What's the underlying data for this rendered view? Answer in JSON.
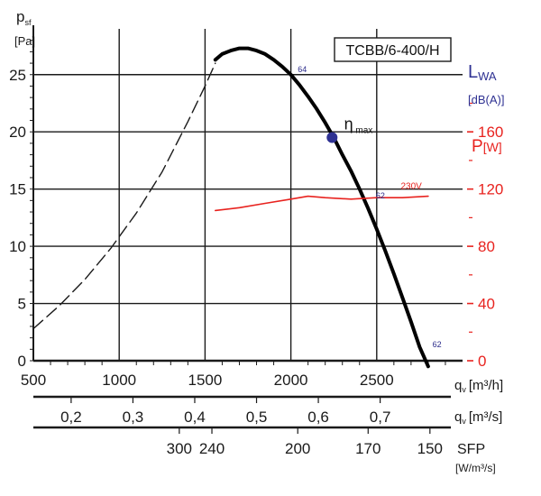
{
  "chart_data": {
    "type": "line",
    "title": "TCBB/6-400/H",
    "x_axes": [
      {
        "label": "q",
        "sub": "v",
        "unit": "[m³/h]",
        "ticks": [
          500,
          1000,
          1500,
          2000,
          2500
        ],
        "range": [
          500,
          3000
        ]
      },
      {
        "label": "q",
        "sub": "v",
        "unit": "[m³/s]",
        "ticks": [
          "0,2",
          "0,3",
          "0,4",
          "0,5",
          "0,6",
          "0,7"
        ],
        "tick_positions": [
          720,
          1080,
          1440,
          1800,
          2160,
          2520
        ]
      },
      {
        "label": "SFP",
        "unit": "[W/m³/s]",
        "ticks": [
          "300",
          "240",
          "200",
          "170",
          "150"
        ],
        "tick_positions": [
          1350,
          1540,
          2040,
          2450,
          2810
        ]
      }
    ],
    "y_left": {
      "label": "p",
      "sub": "sf",
      "unit": "[Pa]",
      "ticks": [
        0,
        5,
        10,
        15,
        20,
        25
      ],
      "range": [
        0,
        29
      ]
    },
    "y_right_sound": {
      "label": "L",
      "sub": "WA",
      "unit": "[dB(A)]",
      "color": "#2e3192"
    },
    "y_right_power": {
      "label": "P",
      "unit": "[W]",
      "ticks": [
        0,
        40,
        80,
        120,
        160
      ],
      "range": [
        0,
        232
      ],
      "color": "#e8231f"
    },
    "series": [
      {
        "style": "dashed",
        "color": "#1a1a1a",
        "x": [
          500,
          650,
          800,
          950,
          1100,
          1250,
          1400,
          1500,
          1560
        ],
        "y": [
          2.8,
          4.8,
          7.1,
          9.8,
          12.9,
          16.5,
          20.9,
          24.0,
          26.0
        ]
      },
      {
        "style": "bold",
        "color": "#000000",
        "x": [
          1560,
          1600,
          1650,
          1700,
          1750,
          1800,
          1850,
          1900,
          1950,
          2000,
          2050,
          2100,
          2150,
          2200,
          2250,
          2300,
          2350,
          2400,
          2450,
          2500,
          2550,
          2600,
          2650,
          2700,
          2750,
          2800
        ],
        "y": [
          26.3,
          26.8,
          27.1,
          27.3,
          27.3,
          27.1,
          26.8,
          26.3,
          25.7,
          25.0,
          24.1,
          23.1,
          22.0,
          20.8,
          19.5,
          18.0,
          16.6,
          15.0,
          13.3,
          11.5,
          9.6,
          7.6,
          5.5,
          3.4,
          1.2,
          -0.5
        ]
      },
      {
        "name": "230V",
        "axis": "power",
        "color": "#e8231f",
        "x": [
          1560,
          1700,
          1850,
          2000,
          2100,
          2200,
          2350,
          2500,
          2650,
          2800
        ],
        "y": [
          105,
          107,
          110,
          113,
          115,
          114,
          113,
          114,
          114,
          115
        ]
      }
    ],
    "annotations": [
      {
        "text": "64",
        "x": 2040,
        "y": 25.2
      },
      {
        "text": "62",
        "x": 2495,
        "y": 14.2
      },
      {
        "text": "62",
        "x": 2825,
        "y": 1.2
      },
      {
        "text": "η",
        "sub": "max",
        "x": 2310,
        "y": 20.2
      },
      {
        "text": "230V",
        "x": 2640,
        "y": 120,
        "axis": "power"
      }
    ],
    "eta_max_point": {
      "x": 2240,
      "y": 19.5
    },
    "grid": true
  }
}
